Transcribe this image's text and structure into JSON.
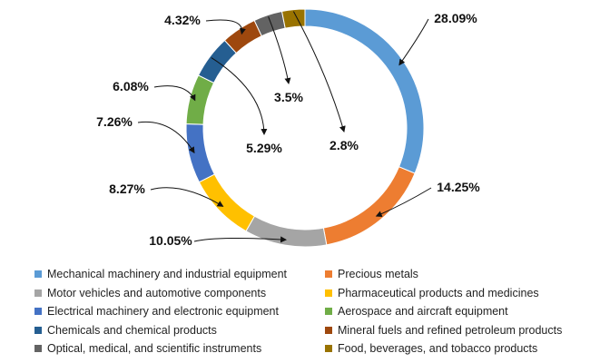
{
  "chart_data": {
    "type": "pie",
    "donut": true,
    "series": [
      {
        "name": "Mechanical machinery and industrial equipment",
        "value": 28.09,
        "label": "28.09%",
        "color": "#5B9BD5"
      },
      {
        "name": "Precious metals",
        "value": 14.25,
        "label": "14.25%",
        "color": "#ED7D31"
      },
      {
        "name": "Motor vehicles and automotive components",
        "value": 10.05,
        "label": "10.05%",
        "color": "#A5A5A5"
      },
      {
        "name": "Pharmaceutical products and medicines",
        "value": 8.27,
        "label": "8.27%",
        "color": "#FFC000"
      },
      {
        "name": "Electrical machinery and electronic equipment",
        "value": 7.26,
        "label": "7.26%",
        "color": "#4472C4"
      },
      {
        "name": "Aerospace and aircraft equipment",
        "value": 6.08,
        "label": "6.08%",
        "color": "#70AD47"
      },
      {
        "name": "Chemicals and chemical products",
        "value": 5.29,
        "label": "5.29%",
        "color": "#255E91"
      },
      {
        "name": "Mineral fuels and refined petroleum products",
        "value": 4.32,
        "label": "4.32%",
        "color": "#9E480E"
      },
      {
        "name": "Optical, medical, and scientific instruments",
        "value": 3.5,
        "label": "3.5%",
        "color": "#636363"
      },
      {
        "name": "Food, beverages, and tobacco products",
        "value": 2.8,
        "label": "2.8%",
        "color": "#997300"
      }
    ],
    "legend_position": "bottom"
  }
}
